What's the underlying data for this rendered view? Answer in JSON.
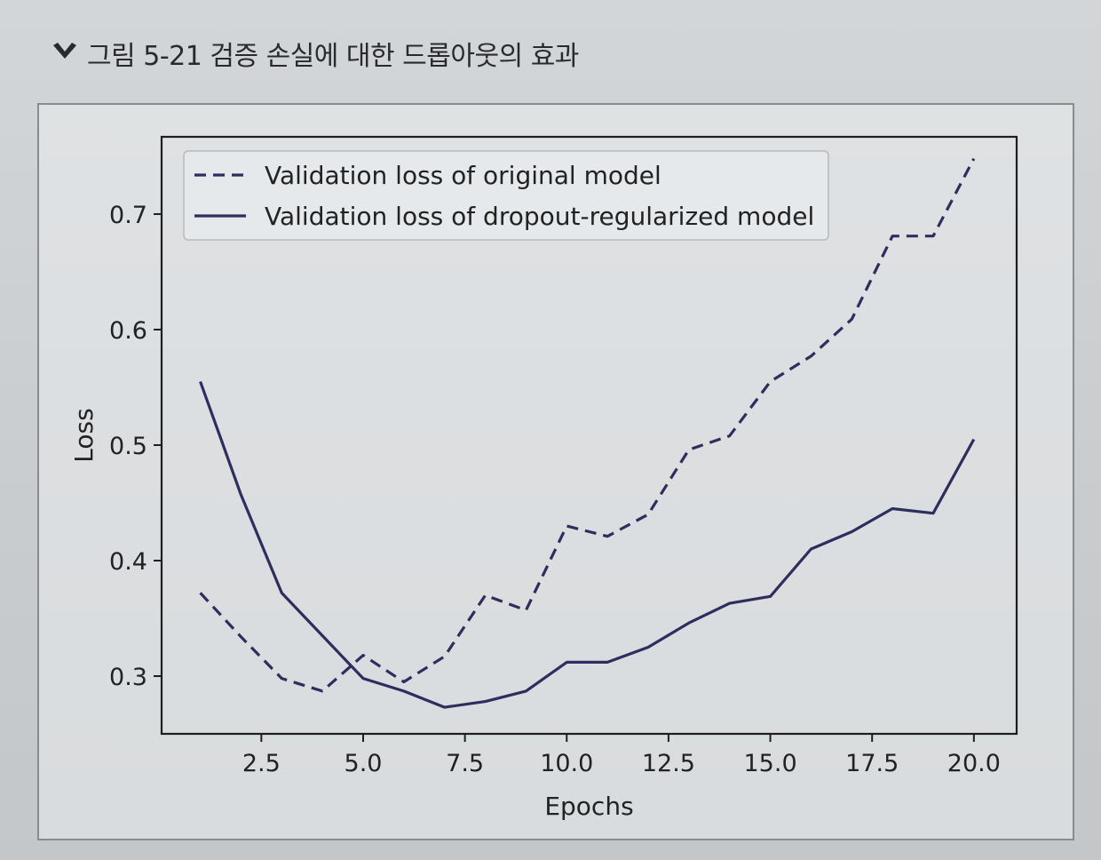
{
  "caption": {
    "icon": "chevron-down-icon",
    "text": "그림 5-21 검증 손실에 대한 드롭아웃의 효과"
  },
  "chart_data": {
    "type": "line",
    "xlabel": "Epochs",
    "ylabel": "Loss",
    "xlim": [
      0.05,
      21.05
    ],
    "ylim": [
      0.25,
      0.7669
    ],
    "x_ticks": [
      2.5,
      5.0,
      7.5,
      10.0,
      12.5,
      15.0,
      17.5,
      20.0
    ],
    "x_tick_labels": [
      "2.5",
      "5.0",
      "7.5",
      "10.0",
      "12.5",
      "15.0",
      "17.5",
      "20.0"
    ],
    "y_ticks": [
      0.3,
      0.4,
      0.5,
      0.6,
      0.7
    ],
    "y_tick_labels": [
      "0.3",
      "0.4",
      "0.5",
      "0.6",
      "0.7"
    ],
    "legend_position": "top-left",
    "grid": false,
    "x": [
      1,
      2,
      3,
      4,
      5,
      6,
      7,
      8,
      9,
      10,
      11,
      12,
      13,
      14,
      15,
      16,
      17,
      18,
      19,
      20
    ],
    "series": [
      {
        "name": "Validation loss of original model",
        "style": "dashed",
        "color": "#2e2e5e",
        "values": [
          0.372,
          0.334,
          0.298,
          0.287,
          0.318,
          0.295,
          0.317,
          0.37,
          0.357,
          0.43,
          0.421,
          0.44,
          0.496,
          0.508,
          0.555,
          0.577,
          0.609,
          0.681,
          0.681,
          0.748
        ]
      },
      {
        "name": "Validation loss of dropout-regularized model",
        "style": "solid",
        "color": "#2e2e5e",
        "values": [
          0.555,
          0.457,
          0.372,
          0.335,
          0.298,
          0.287,
          0.273,
          0.278,
          0.287,
          0.312,
          0.312,
          0.325,
          0.346,
          0.363,
          0.369,
          0.41,
          0.425,
          0.445,
          0.441,
          0.505
        ]
      }
    ]
  }
}
